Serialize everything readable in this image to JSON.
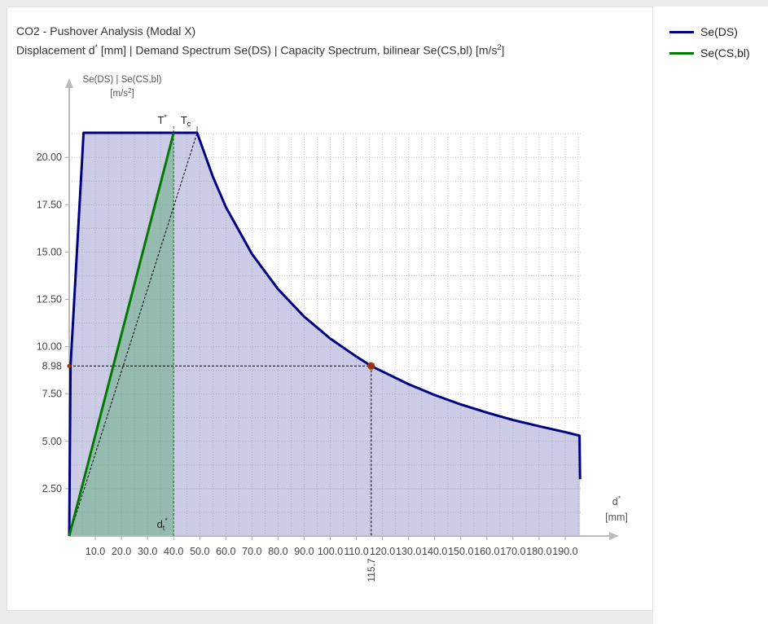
{
  "chart_data": {
    "type": "area",
    "title": "CO2 - Pushover Analysis (Modal X)",
    "subtitle": "Displacement d* [mm] | Demand Spectrum Se(DS) | Capacity Spectrum, bilinear Se(CS,bl) [m/s2]",
    "ylabel": "Se(DS) | Se(CS,bl)",
    "yunit": "[m/s2]",
    "xlabel": "d*",
    "xunit": "[mm]",
    "xlim": [
      0,
      200
    ],
    "ylim": [
      0,
      22.5
    ],
    "grid": true,
    "legend_position": "top-right",
    "x_ticks": [
      "10.0",
      "20.0",
      "30.0",
      "40.0",
      "50.0",
      "60.0",
      "70.0",
      "80.0",
      "90.0",
      "100.0",
      "110.0",
      "120.0",
      "130.0",
      "140.0",
      "150.0",
      "160.0",
      "170.0",
      "180.0",
      "190.0"
    ],
    "y_ticks": [
      "2.50",
      "5.00",
      "7.50",
      "10.00",
      "12.50",
      "15.00",
      "17.50",
      "20.00"
    ],
    "markers": {
      "T_star": {
        "label": "T*",
        "x": 40.0
      },
      "T_c": {
        "label": "Tc",
        "x": 49.0
      },
      "dt_star": {
        "label": "dt*",
        "x": 40.0
      }
    },
    "performance_point": {
      "x": 115.7,
      "y": 8.98,
      "x_label": "115.7",
      "y_label": "8.98"
    },
    "series": [
      {
        "name": "Se(DS)",
        "color": "#000080",
        "fill": "#c9c9e6",
        "points": [
          [
            0,
            0
          ],
          [
            0.5,
            8.98
          ],
          [
            5.5,
            21.3
          ],
          [
            49,
            21.3
          ],
          [
            55,
            18.99
          ],
          [
            60,
            17.38
          ],
          [
            70,
            14.9
          ],
          [
            80,
            13.04
          ],
          [
            90,
            11.59
          ],
          [
            100,
            10.43
          ],
          [
            110,
            9.48
          ],
          [
            115.7,
            8.98
          ],
          [
            130,
            8.02
          ],
          [
            140,
            7.45
          ],
          [
            150,
            6.95
          ],
          [
            160,
            6.52
          ],
          [
            170,
            6.13
          ],
          [
            180,
            5.8
          ],
          [
            190,
            5.49
          ],
          [
            195.5,
            5.3
          ],
          [
            195.7,
            3.0
          ]
        ]
      },
      {
        "name": "Se(CS,bl)",
        "color": "#007a00",
        "fill": "#8fb8a8",
        "points": [
          [
            0,
            0
          ],
          [
            40,
            21.3
          ],
          [
            40,
            0
          ]
        ]
      }
    ]
  }
}
